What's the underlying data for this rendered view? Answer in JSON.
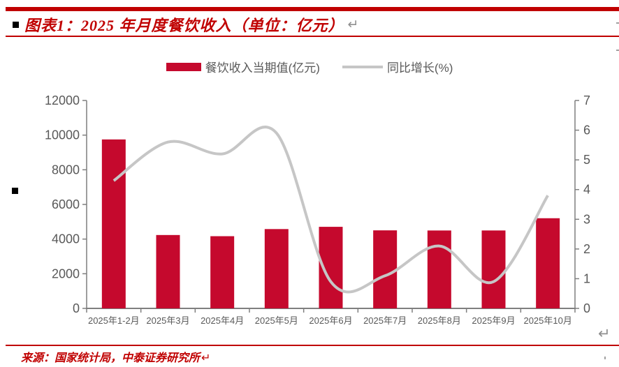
{
  "header": {
    "title": "图表1：2025 年月度餐饮收入（单位：亿元）",
    "return_mark": "↵"
  },
  "footer": {
    "source": "来源：国家统计局，中泰证券研究所",
    "return_mark": "↵"
  },
  "chart_return_mark": "↵",
  "colors": {
    "accent_red": "#C00000",
    "bar_red": "#C5092D",
    "line_gray": "#C6C6C6",
    "axis_gray": "#7F7F7F",
    "label_gray": "#595959"
  },
  "chart_data": {
    "type": "bar",
    "title": "2025 年月度餐饮收入（单位：亿元）",
    "categories": [
      "2025年1-2月",
      "2025年3月",
      "2025年4月",
      "2025年5月",
      "2025年6月",
      "2025年7月",
      "2025年8月",
      "2025年9月",
      "2025年10月"
    ],
    "series": [
      {
        "name": "餐饮收入当期值(亿元)",
        "type": "bar",
        "axis": "left",
        "values": [
          9751,
          4235,
          4167,
          4578,
          4708,
          4504,
          4496,
          4497,
          5204
        ]
      },
      {
        "name": "同比增长(%)",
        "type": "line",
        "axis": "right",
        "values": [
          4.3,
          5.6,
          5.2,
          5.9,
          0.9,
          1.1,
          2.1,
          0.9,
          3.8
        ]
      }
    ],
    "left_axis": {
      "min": 0,
      "max": 12000,
      "step": 2000,
      "tick_labels": [
        "0",
        "2000",
        "4000",
        "6000",
        "8000",
        "10000",
        "12000"
      ]
    },
    "right_axis": {
      "min": 0,
      "max": 7,
      "step": 1,
      "tick_labels": [
        "0",
        "1",
        "2",
        "3",
        "4",
        "5",
        "6",
        "7"
      ]
    },
    "legend_position": "top",
    "grid": false
  }
}
